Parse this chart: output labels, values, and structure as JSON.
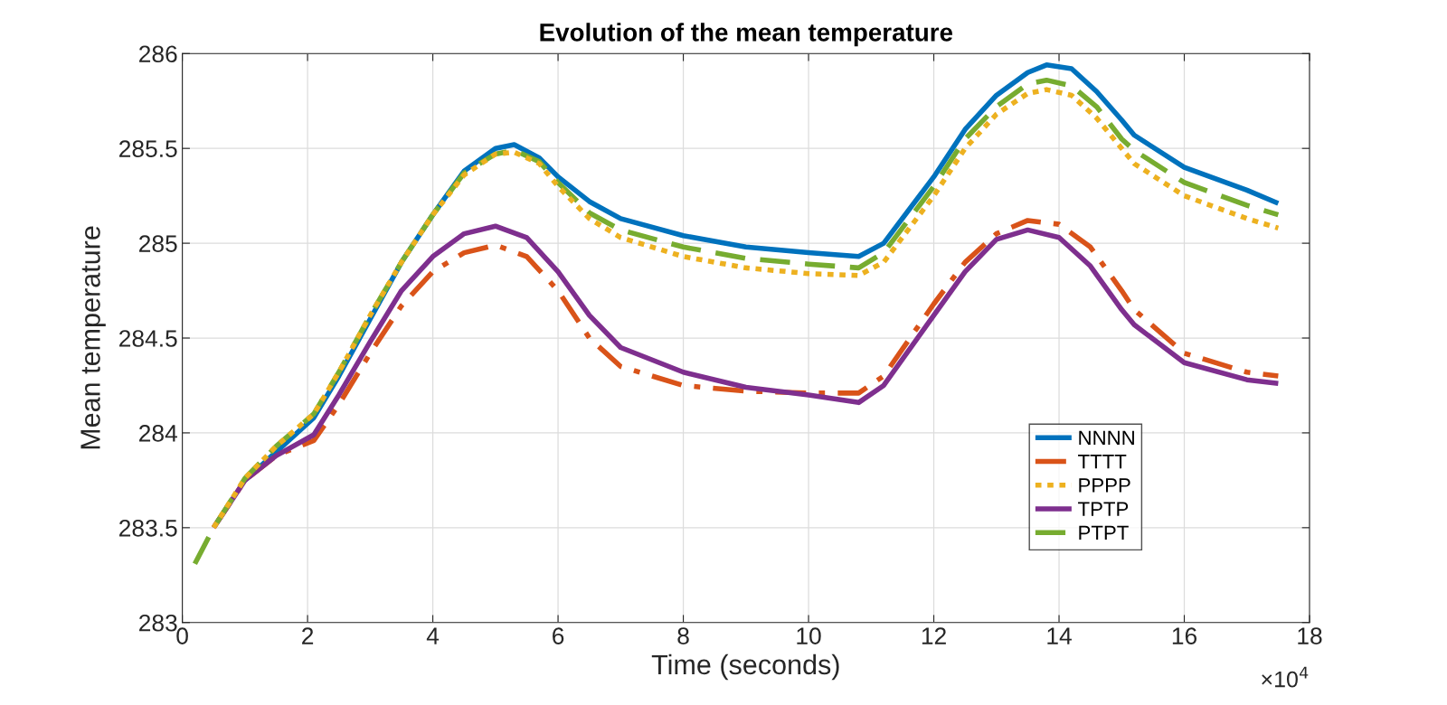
{
  "chart_data": {
    "type": "line",
    "title": "Evolution of the mean temperature",
    "xlabel": "Time (seconds)",
    "ylabel": "Mean temperature",
    "annotations": [
      "×10$^{4}$"
    ],
    "xlim": [
      0,
      18
    ],
    "xticks": [
      0,
      2,
      4,
      6,
      8,
      10,
      12,
      14,
      16,
      18
    ],
    "ylim": [
      283,
      286
    ],
    "yticks": [
      283,
      283.5,
      284,
      284.5,
      285,
      285.5,
      286
    ],
    "grid": true,
    "legend": "bottom right",
    "marker": "none",
    "x": [
      0.2,
      0.5,
      1,
      1.5,
      2.1,
      2.5,
      3,
      3.5,
      4,
      4.5,
      5,
      5.3,
      5.7,
      6,
      6.5,
      7,
      8,
      9,
      10,
      10.8,
      11.2,
      12,
      12.5,
      13,
      13.5,
      13.8,
      14.2,
      14.6,
      15,
      15.2,
      16,
      17,
      17.5
    ],
    "series": [
      {
        "name": "NNNN",
        "color": "#0072bd",
        "line_style": "solid",
        "values": [
          null,
          null,
          283.75,
          283.9,
          284.08,
          284.3,
          284.6,
          284.9,
          285.15,
          285.38,
          285.5,
          285.52,
          285.45,
          285.35,
          285.22,
          285.13,
          285.04,
          284.98,
          284.95,
          284.93,
          285.0,
          285.35,
          285.6,
          285.78,
          285.9,
          285.94,
          285.92,
          285.8,
          285.65,
          285.57,
          285.4,
          285.28,
          285.21
        ]
      },
      {
        "name": "TTTT",
        "color": "#d95319",
        "line_style": "dashdot",
        "x": [
          0.5,
          1,
          1.5,
          2.1,
          2.5,
          3,
          3.5,
          4,
          4.5,
          5,
          5.5,
          6,
          6.5,
          7,
          8,
          9,
          10,
          10.8,
          11.2,
          12,
          12.5,
          13,
          13.5,
          14,
          14.5,
          15,
          15.2,
          16,
          17,
          17.5
        ],
        "values": [
          283.5,
          283.75,
          283.88,
          283.96,
          284.15,
          284.42,
          284.67,
          284.85,
          284.95,
          284.99,
          284.93,
          284.75,
          284.5,
          284.35,
          284.25,
          284.22,
          284.21,
          284.21,
          284.3,
          284.68,
          284.9,
          285.05,
          285.12,
          285.1,
          284.98,
          284.75,
          284.65,
          284.42,
          284.32,
          284.3
        ]
      },
      {
        "name": "PPPP",
        "color": "#edb120",
        "line_style": "dotted",
        "values": [
          null,
          283.5,
          283.76,
          283.93,
          284.1,
          284.32,
          284.62,
          284.9,
          285.15,
          285.36,
          285.47,
          285.48,
          285.42,
          285.3,
          285.13,
          285.03,
          284.93,
          284.87,
          284.84,
          284.83,
          284.9,
          285.25,
          285.5,
          285.68,
          285.79,
          285.81,
          285.78,
          285.66,
          285.5,
          285.42,
          285.25,
          285.13,
          285.08
        ]
      },
      {
        "name": "TPTP",
        "color": "#7e2f8e",
        "line_style": "solid",
        "x": [
          0.5,
          1,
          1.5,
          2.1,
          2.5,
          3,
          3.5,
          4,
          4.5,
          5,
          5.5,
          6,
          6.5,
          7,
          8,
          9,
          10,
          10.8,
          11.2,
          12,
          12.5,
          13,
          13.5,
          14,
          14.5,
          15,
          15.2,
          16,
          17,
          17.5
        ],
        "values": [
          283.5,
          283.75,
          283.88,
          283.99,
          284.2,
          284.48,
          284.75,
          284.93,
          285.05,
          285.09,
          285.03,
          284.85,
          284.62,
          284.45,
          284.32,
          284.24,
          284.2,
          284.16,
          284.25,
          284.62,
          284.85,
          285.02,
          285.07,
          285.03,
          284.88,
          284.65,
          284.57,
          284.37,
          284.28,
          284.26
        ]
      },
      {
        "name": "PTPT",
        "color": "#77ac30",
        "line_style": "dashed",
        "values": [
          283.31,
          283.5,
          283.76,
          283.93,
          284.1,
          284.32,
          284.62,
          284.9,
          285.15,
          285.37,
          285.47,
          285.49,
          285.43,
          285.32,
          285.16,
          285.07,
          284.98,
          284.92,
          284.89,
          284.87,
          284.95,
          285.3,
          285.55,
          285.72,
          285.84,
          285.86,
          285.83,
          285.72,
          285.55,
          285.49,
          285.32,
          285.2,
          285.15
        ]
      }
    ]
  }
}
